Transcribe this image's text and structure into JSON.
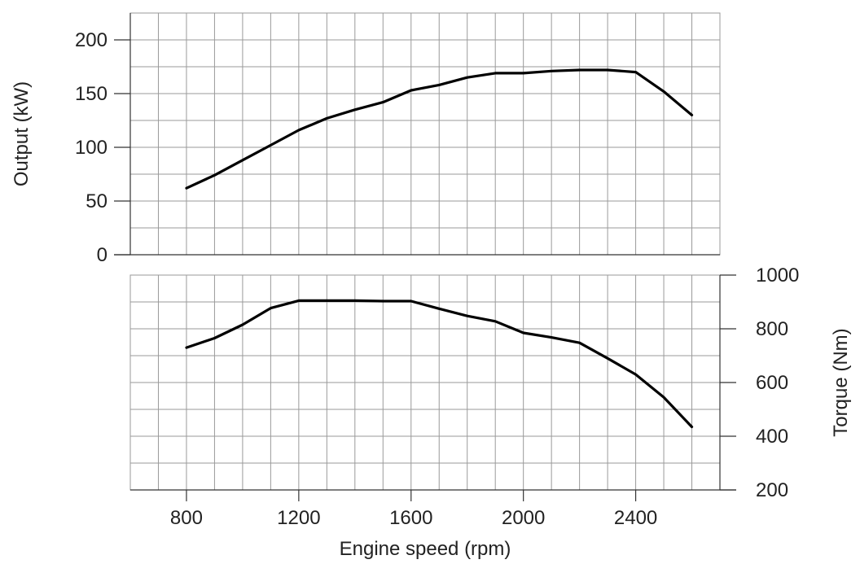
{
  "chart_data": [
    {
      "type": "line",
      "panel": "top",
      "title": "",
      "xlabel": "",
      "ylabel": "Output (kW)",
      "xlim": [
        600,
        2700
      ],
      "ylim": [
        0,
        225
      ],
      "y_ticks": [
        0,
        50,
        100,
        150,
        200
      ],
      "grid": true,
      "series": [
        {
          "x": [
            800,
            900,
            1000,
            1100,
            1200,
            1300,
            1400,
            1500,
            1600,
            1700,
            1800,
            1900,
            2000,
            2100,
            2200,
            2300,
            2400,
            2500,
            2600
          ],
          "values": [
            62,
            74,
            88,
            102,
            116,
            127,
            135,
            142,
            153,
            158,
            165,
            169,
            169,
            171,
            172,
            172,
            170,
            152,
            130
          ]
        }
      ]
    },
    {
      "type": "line",
      "panel": "bottom",
      "title": "",
      "xlabel": "Engine speed (rpm)",
      "ylabel": "Torque (Nm)",
      "y_axis_side": "right",
      "xlim": [
        600,
        2700
      ],
      "ylim": [
        200,
        1000
      ],
      "x_ticks": [
        800,
        1200,
        1600,
        2000,
        2400
      ],
      "y_ticks": [
        200,
        400,
        600,
        800,
        1000
      ],
      "grid": true,
      "series": [
        {
          "x": [
            800,
            900,
            1000,
            1100,
            1200,
            1300,
            1400,
            1500,
            1600,
            1700,
            1800,
            1900,
            2000,
            2100,
            2200,
            2300,
            2400,
            2500,
            2600
          ],
          "values": [
            730,
            765,
            815,
            877,
            905,
            905,
            905,
            903,
            903,
            875,
            848,
            828,
            785,
            768,
            748,
            690,
            630,
            545,
            435
          ]
        }
      ]
    }
  ]
}
